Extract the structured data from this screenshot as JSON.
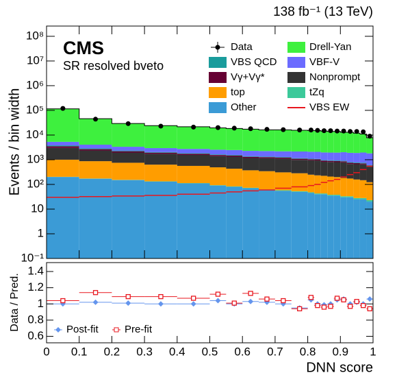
{
  "chart_data": [
    {
      "type": "stacked_histogram",
      "header": "138 fb⁻¹ (13 TeV)",
      "title": "CMS",
      "subtitle": "SR resolved bveto",
      "y_label": "Events / bin width",
      "log_scale": true,
      "bins": [
        0,
        0.1,
        0.2,
        0.3,
        0.4,
        0.5,
        0.55,
        0.6,
        0.65,
        0.7,
        0.75,
        0.8,
        0.82,
        0.84,
        0.86,
        0.88,
        0.9,
        0.92,
        0.94,
        0.96,
        0.98,
        1
      ],
      "xlim": [
        0,
        1
      ],
      "ylim": [
        0.1,
        260000000
      ],
      "yticks": [
        {
          "value": 0.1,
          "label": "10⁻¹"
        },
        1,
        10,
        {
          "value": 100,
          "label": "10²"
        },
        {
          "value": 1000,
          "label": "10³"
        },
        {
          "value": 10000,
          "label": "10⁴"
        },
        {
          "value": 100000,
          "label": "10⁵"
        },
        {
          "value": 1000000,
          "label": "10⁶"
        },
        {
          "value": 10000000,
          "label": "10⁷"
        },
        {
          "value": 100000000,
          "label": "10⁸"
        }
      ],
      "series": [
        {
          "name": "Other",
          "color": "#3b9bd6",
          "values": [
            200,
            170,
            150,
            130,
            110,
            90,
            80,
            70,
            60,
            55,
            50,
            45,
            40,
            40,
            35,
            35,
            30,
            30,
            25,
            25,
            20
          ]
        },
        {
          "name": "tZq",
          "color": "#3cc99a",
          "values": [
            3,
            3,
            3,
            3,
            3,
            3,
            3,
            3,
            3,
            3,
            3,
            3,
            3,
            3,
            3,
            3,
            3,
            3,
            3,
            3,
            3
          ]
        },
        {
          "name": "top",
          "color": "#ff9d00",
          "values": [
            800,
            700,
            600,
            500,
            450,
            400,
            350,
            300,
            280,
            250,
            230,
            200,
            190,
            180,
            170,
            160,
            150,
            140,
            130,
            120,
            100
          ]
        },
        {
          "name": "Nonprompt",
          "color": "#333333",
          "values": [
            2000,
            1500,
            1200,
            1100,
            1000,
            900,
            900,
            800,
            800,
            800,
            700,
            700,
            700,
            600,
            600,
            600,
            600,
            500,
            500,
            500,
            400
          ]
        },
        {
          "name": "Vγ+Vγ*",
          "color": "#660033",
          "values": [
            500,
            300,
            250,
            200,
            180,
            160,
            150,
            140,
            130,
            120,
            110,
            100,
            100,
            100,
            90,
            90,
            80,
            80,
            70,
            60,
            50
          ]
        },
        {
          "name": "VBS QCD",
          "color": "#1a9c9c",
          "values": [
            300,
            200,
            150,
            120,
            100,
            90,
            80,
            70,
            70,
            60,
            60,
            50,
            50,
            50,
            50,
            50,
            50,
            50,
            50,
            50,
            40
          ]
        },
        {
          "name": "VBF-V",
          "color": "#6b6bff",
          "values": [
            1500,
            1200,
            1000,
            900,
            900,
            900,
            900,
            900,
            900,
            900,
            1000,
            1000,
            1000,
            1000,
            1000,
            1000,
            1100,
            1100,
            1100,
            1200,
            1200
          ]
        },
        {
          "name": "Drell-Yan",
          "color": "#3ef03e",
          "values": [
            110000,
            42000,
            26000,
            21000,
            19000,
            17000,
            16000,
            15000,
            14000,
            14000,
            13500,
            13000,
            13000,
            12500,
            12000,
            12000,
            11000,
            11000,
            10000,
            9000,
            6000
          ]
        }
      ],
      "line": {
        "name": "VBS EW",
        "color": "#e8161e",
        "values": [
          30,
          32,
          34,
          36,
          40,
          45,
          50,
          55,
          60,
          70,
          80,
          90,
          100,
          120,
          140,
          160,
          200,
          250,
          300,
          400,
          550
        ]
      },
      "data": {
        "name": "Data",
        "color": "#000000",
        "values": [
          120000,
          44000,
          29000,
          23000,
          21000,
          20000,
          19000,
          18000,
          17000,
          16500,
          16000,
          16000,
          15500,
          15000,
          15000,
          14500,
          14500,
          14000,
          14000,
          13500,
          9000
        ]
      }
    },
    {
      "type": "ratio",
      "x_label": "DNN score",
      "y_label": "Data / Pred.",
      "xlim": [
        0,
        1
      ],
      "xticks": [
        0,
        0.1,
        0.2,
        0.3,
        0.4,
        0.5,
        0.6,
        0.7,
        0.8,
        0.9,
        1
      ],
      "ylim": [
        0.52,
        1.51
      ],
      "yticks": [
        0.6,
        0.8,
        1,
        1.2,
        1.4
      ],
      "series": [
        {
          "name": "Post-fit",
          "color": "#6495ed",
          "values": [
            1.0,
            1.02,
            1.01,
            1.0,
            1.0,
            1.04,
            1.0,
            1.03,
            1.02,
            1.0,
            0.95,
            1.05,
            1.0,
            0.99,
            1.0,
            1.05,
            1.06,
            1.0,
            1.02,
            1.0,
            1.06
          ]
        },
        {
          "name": "Pre-fit",
          "color": "#e8161e",
          "values": [
            1.04,
            1.14,
            1.09,
            1.09,
            1.07,
            1.12,
            1.01,
            1.13,
            1.06,
            1.04,
            0.94,
            1.08,
            0.98,
            0.96,
            0.97,
            1.07,
            1.05,
            0.97,
            1.03,
            0.98,
            0.94
          ]
        }
      ]
    }
  ]
}
